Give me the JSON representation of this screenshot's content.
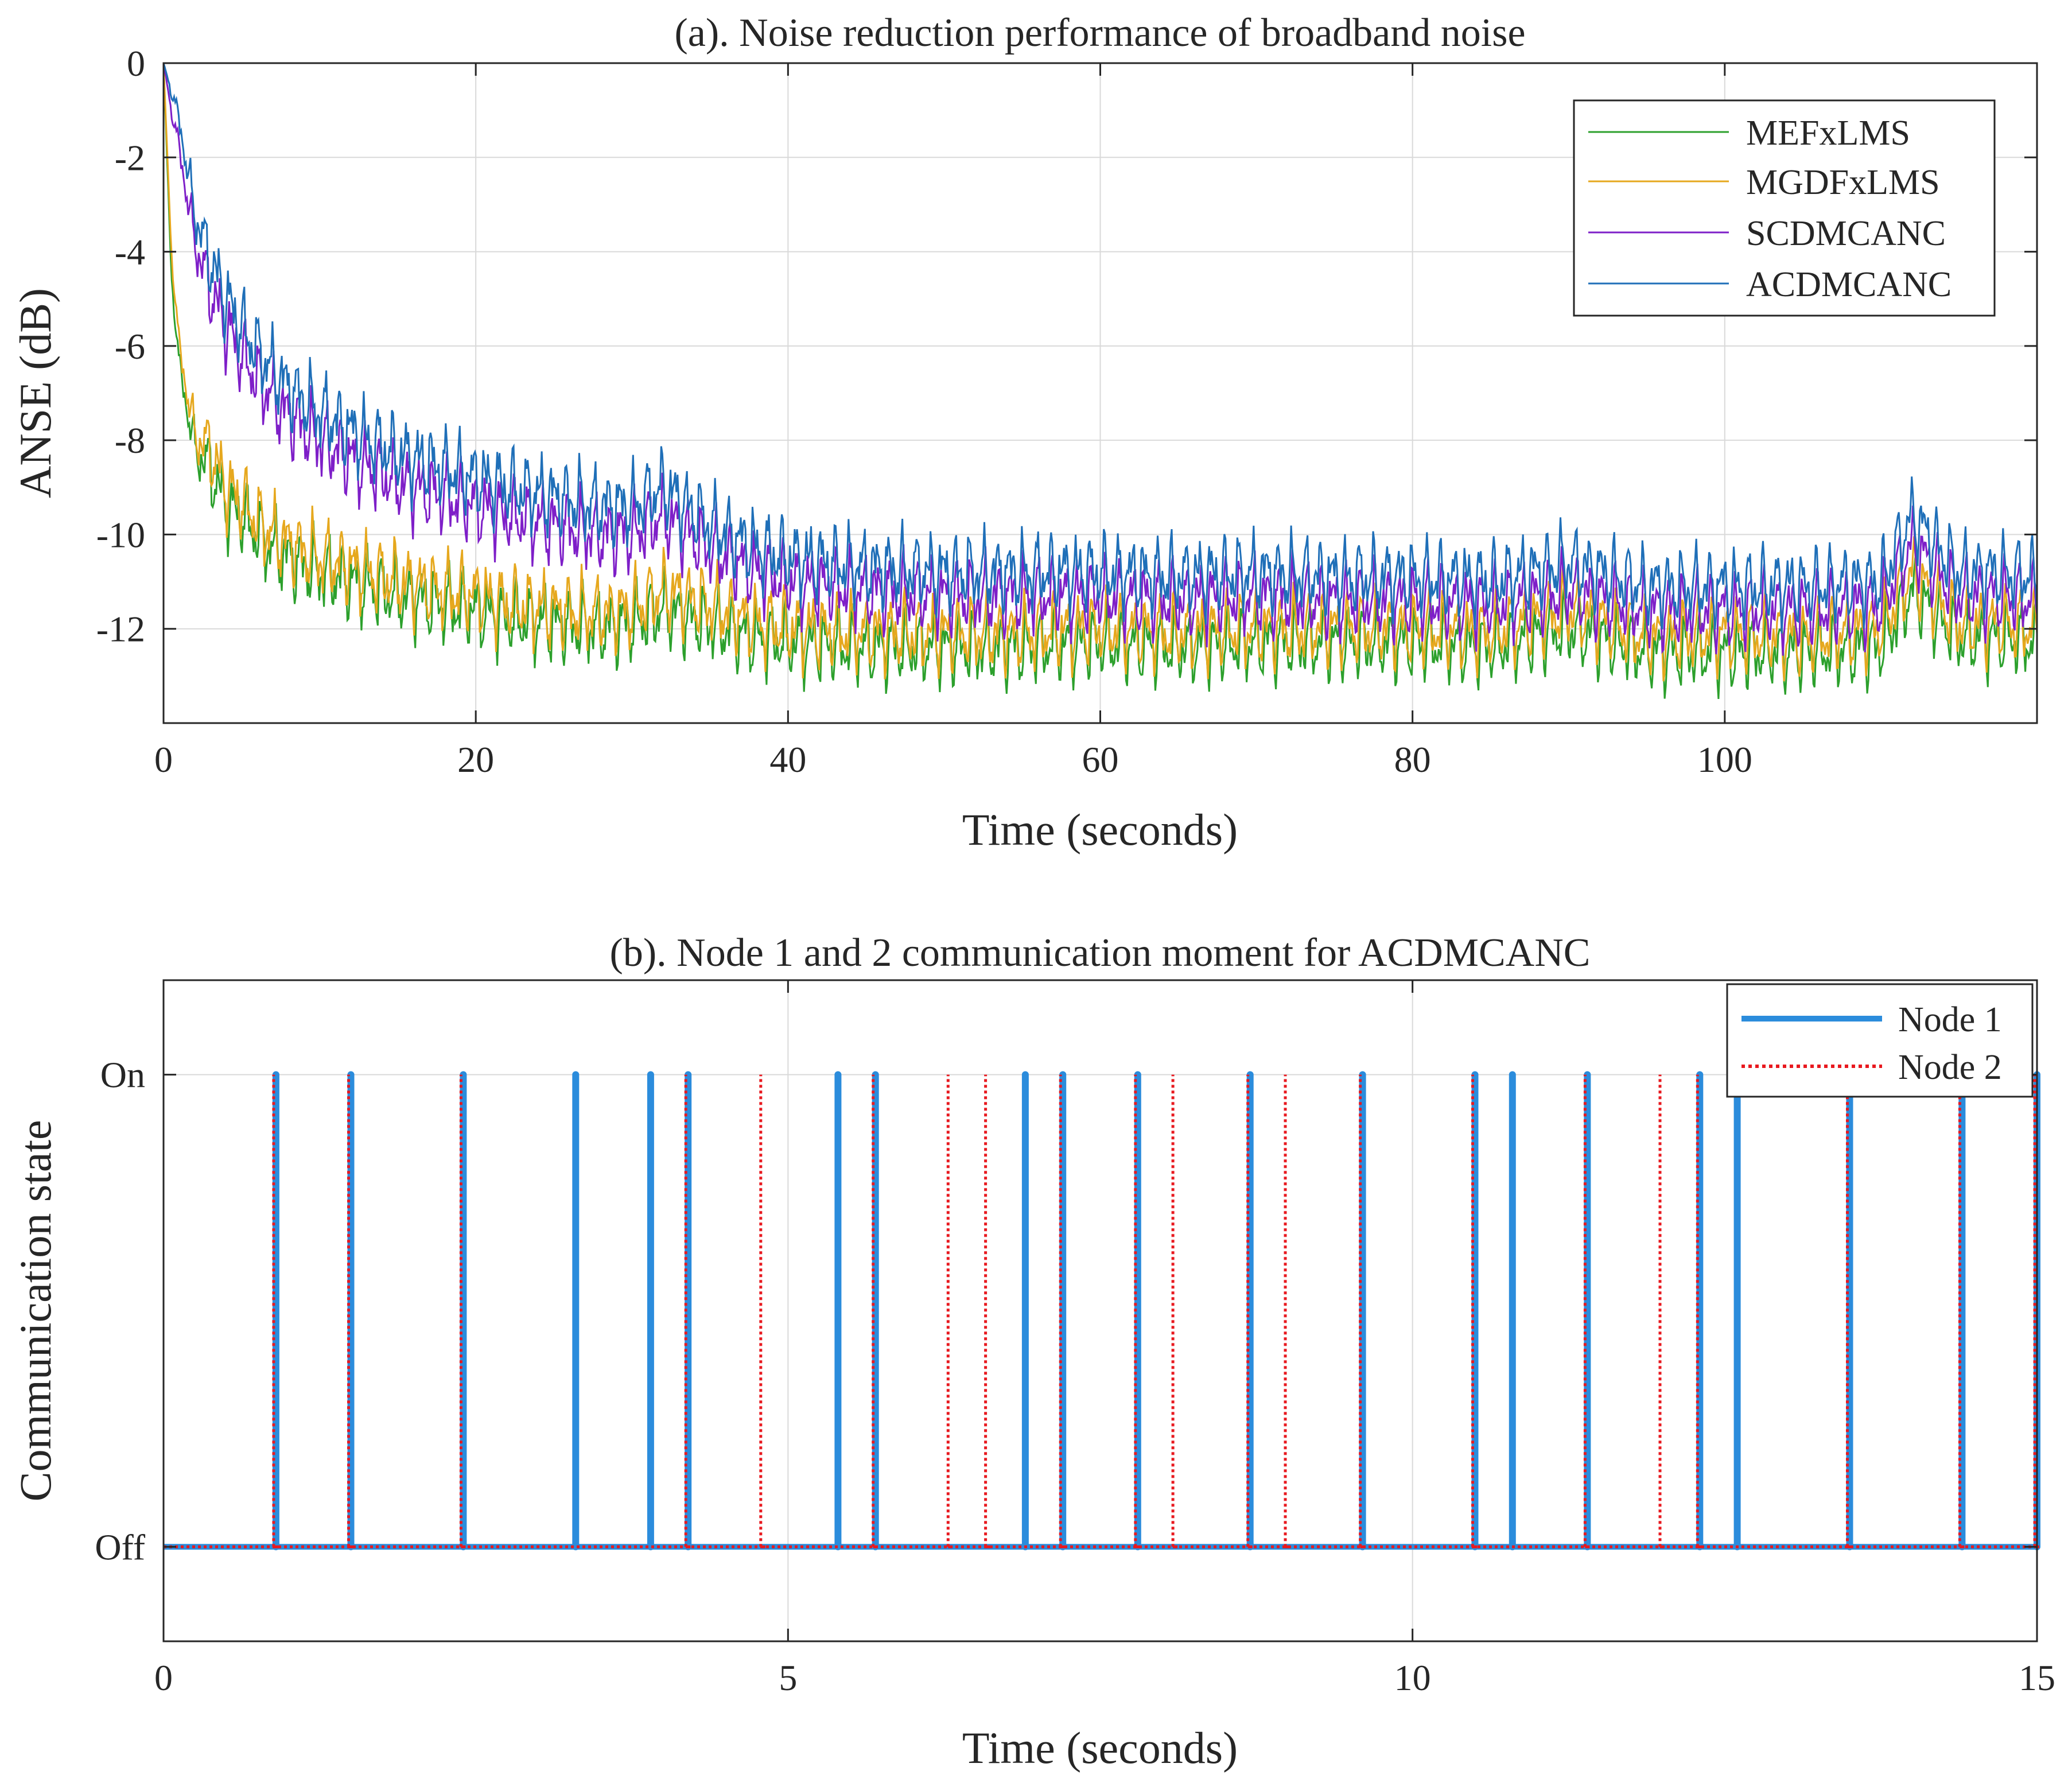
{
  "chart_data": [
    {
      "type": "line",
      "title": "(a). Noise reduction performance of broadband noise",
      "xlabel": "Time (seconds)",
      "ylabel": "ANSE (dB)",
      "xlim": [
        0,
        120
      ],
      "ylim": [
        -14,
        0
      ],
      "x_ticks": [
        0,
        20,
        40,
        60,
        80,
        100
      ],
      "x_tick_labels": [
        "0",
        "20",
        "40",
        "60",
        "80",
        "100"
      ],
      "y_ticks": [
        0,
        -2,
        -4,
        -6,
        -8,
        -10,
        -12
      ],
      "y_tick_labels": [
        "0",
        "-2",
        "-4",
        "-6",
        "-8",
        "-10",
        "-12"
      ],
      "grid": true,
      "legend_position": "top-right",
      "x": [
        0,
        0.5,
        1,
        2,
        3,
        4,
        5,
        6,
        7,
        8,
        10,
        12,
        15,
        18,
        20,
        22,
        25,
        28,
        30,
        32,
        35,
        38,
        40,
        45,
        50,
        55,
        60,
        65,
        70,
        75,
        80,
        85,
        90,
        95,
        100,
        105,
        110,
        112,
        115,
        118,
        120
      ],
      "series": [
        {
          "name": "MEFxLMS",
          "color": "#2ca02c",
          "values": [
            0,
            -4.5,
            -6.4,
            -8.2,
            -8.6,
            -9.4,
            -9.6,
            -10.0,
            -10.3,
            -10.5,
            -10.8,
            -11.0,
            -11.3,
            -11.5,
            -11.6,
            -11.8,
            -11.9,
            -12.0,
            -11.9,
            -11.6,
            -11.9,
            -12.2,
            -12.3,
            -12.4,
            -12.4,
            -12.4,
            -12.3,
            -12.4,
            -12.3,
            -12.3,
            -12.3,
            -12.4,
            -12.0,
            -12.5,
            -12.5,
            -12.5,
            -12.4,
            -11.2,
            -12.2,
            -12.2,
            -12.3
          ]
        },
        {
          "name": "MGDFxLMS",
          "color": "#e6a81e",
          "values": [
            0,
            -4.0,
            -6.0,
            -7.9,
            -8.2,
            -9.0,
            -9.3,
            -9.7,
            -10.0,
            -10.2,
            -10.5,
            -10.7,
            -11.0,
            -11.2,
            -11.3,
            -11.5,
            -11.6,
            -11.7,
            -11.6,
            -11.2,
            -11.5,
            -11.9,
            -12.0,
            -12.1,
            -12.1,
            -12.1,
            -12.0,
            -12.1,
            -12.0,
            -12.0,
            -12.0,
            -12.1,
            -11.6,
            -12.2,
            -12.1,
            -12.2,
            -12.0,
            -10.8,
            -11.9,
            -11.9,
            -12.0
          ]
        },
        {
          "name": "SCDMCANC",
          "color": "#7e1fc8",
          "values": [
            0,
            -1.0,
            -1.8,
            -3.8,
            -4.8,
            -5.6,
            -6.2,
            -6.7,
            -7.1,
            -7.5,
            -8.0,
            -8.4,
            -8.9,
            -9.2,
            -9.4,
            -9.6,
            -9.8,
            -10.0,
            -10.0,
            -9.6,
            -10.3,
            -10.8,
            -11.0,
            -11.2,
            -11.3,
            -11.3,
            -11.3,
            -11.4,
            -11.3,
            -11.4,
            -11.4,
            -11.5,
            -11.2,
            -11.6,
            -11.6,
            -11.6,
            -11.5,
            -10.2,
            -11.3,
            -11.3,
            -11.4
          ]
        },
        {
          "name": "ACDMCANC",
          "color": "#1f6fb8",
          "values": [
            0,
            -0.6,
            -1.2,
            -3.2,
            -4.2,
            -5.0,
            -5.6,
            -6.1,
            -6.5,
            -6.9,
            -7.4,
            -7.8,
            -8.3,
            -8.6,
            -8.8,
            -9.0,
            -9.2,
            -9.4,
            -9.4,
            -9.0,
            -9.8,
            -10.3,
            -10.5,
            -10.7,
            -10.8,
            -10.8,
            -10.8,
            -10.9,
            -10.8,
            -10.9,
            -10.9,
            -11.0,
            -10.6,
            -11.1,
            -11.1,
            -11.1,
            -11.0,
            -9.6,
            -10.8,
            -10.8,
            -10.9
          ]
        }
      ]
    },
    {
      "type": "line",
      "title": "(b). Node 1 and 2 communication moment for ACDMCANC",
      "xlabel": "Time (seconds)",
      "ylabel": "Communication state",
      "xlim": [
        0,
        15
      ],
      "ylim": [
        -0.2,
        1.2
      ],
      "x_ticks": [
        0,
        5,
        10,
        15
      ],
      "x_tick_labels": [
        "0",
        "5",
        "10",
        "15"
      ],
      "y_ticks": [
        1,
        0
      ],
      "y_tick_labels": [
        "On",
        "Off"
      ],
      "grid": true,
      "legend_position": "top-right",
      "series": [
        {
          "name": "Node 1",
          "color": "#2b8cdc",
          "events": [
            0.9,
            1.5,
            2.4,
            3.3,
            3.9,
            4.2,
            5.4,
            5.7,
            6.9,
            7.2,
            7.8,
            8.7,
            9.6,
            10.5,
            10.8,
            11.4,
            12.3,
            12.6,
            13.5,
            14.4,
            15.0
          ]
        },
        {
          "name": "Node 2",
          "color": "#e8191f",
          "events": [
            0.9,
            1.5,
            2.4,
            4.2,
            4.8,
            5.7,
            6.3,
            6.6,
            7.2,
            7.8,
            8.1,
            8.7,
            9.0,
            9.6,
            10.5,
            11.4,
            12.0,
            12.3,
            13.5,
            14.4,
            15.0
          ]
        }
      ]
    }
  ]
}
